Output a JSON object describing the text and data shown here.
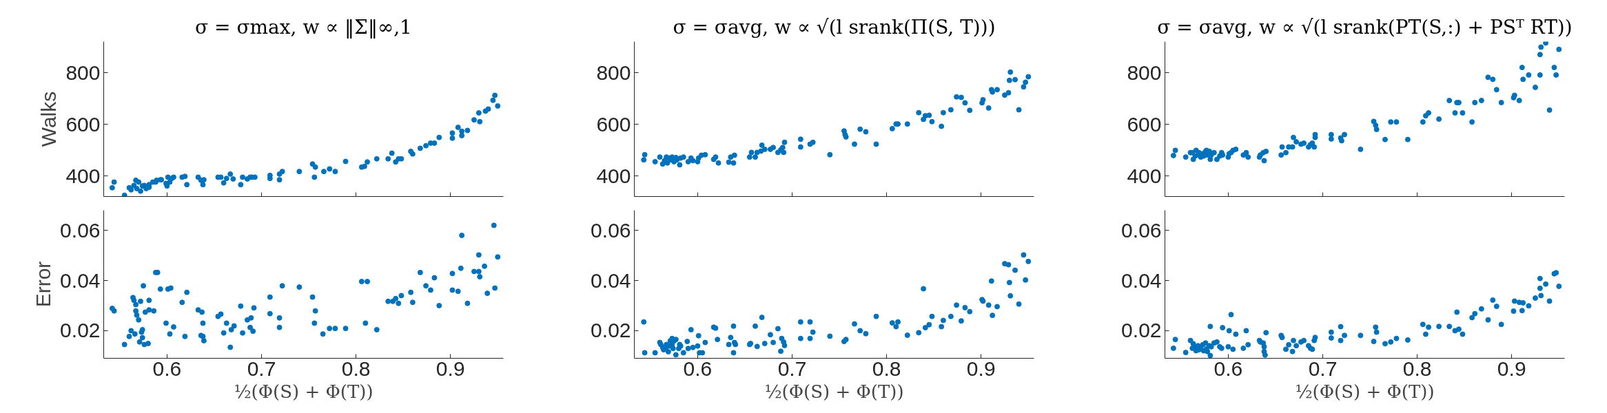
{
  "chart_data": [
    {
      "type": "scatter",
      "title": "σ = σmax, w ∝ ‖Σ‖∞,1",
      "ylabel": "Walks",
      "xlim": [
        0.533,
        0.956
      ],
      "ylim": [
        320,
        920
      ],
      "xticks": [
        0.6,
        0.7,
        0.8,
        0.9
      ],
      "yticks": [
        400,
        600,
        800
      ],
      "marker": "circle",
      "grid": false,
      "tick_labels": "y",
      "series": [
        {
          "color": "#0072bd",
          "x": [
            0.542,
            0.544,
            0.555,
            0.56,
            0.562,
            0.565,
            0.567,
            0.568,
            0.57,
            0.572,
            0.574,
            0.576,
            0.578,
            0.581,
            0.581,
            0.585,
            0.588,
            0.589,
            0.593,
            0.594,
            0.599,
            0.6,
            0.601,
            0.603,
            0.605,
            0.607,
            0.616,
            0.619,
            0.621,
            0.633,
            0.636,
            0.638,
            0.639,
            0.654,
            0.657,
            0.66,
            0.663,
            0.667,
            0.67,
            0.678,
            0.68,
            0.685,
            0.688,
            0.69,
            0.693,
            0.709,
            0.709,
            0.719,
            0.719,
            0.722,
            0.74,
            0.754,
            0.756,
            0.757,
            0.766,
            0.772,
            0.778,
            0.789,
            0.806,
            0.809,
            0.812,
            0.822,
            0.834,
            0.838,
            0.842,
            0.845,
            0.848,
            0.858,
            0.86,
            0.868,
            0.874,
            0.879,
            0.883,
            0.888,
            0.902,
            0.902,
            0.908,
            0.912,
            0.912,
            0.918,
            0.925,
            0.93,
            0.931,
            0.937,
            0.94,
            0.945,
            0.947,
            0.95
          ],
          "values": [
            354,
            376,
            325,
            354,
            346,
            363,
            383,
            351,
            376,
            341,
            361,
            363,
            351,
            366,
            356,
            376,
            376,
            383,
            385,
            385,
            371,
            361,
            395,
            376,
            390,
            395,
            395,
            398,
            366,
            395,
            383,
            366,
            385,
            395,
            395,
            373,
            390,
            407,
            388,
            366,
            395,
            388,
            395,
            395,
            395,
            402,
            390,
            385,
            407,
            417,
            417,
            446,
            395,
            434,
            417,
            427,
            417,
            456,
            434,
            437,
            454,
            466,
            466,
            488,
            454,
            466,
            466,
            495,
            485,
            507,
            517,
            527,
            527,
            549,
            546,
            566,
            588,
            573,
            556,
            576,
            617,
            644,
            610,
            651,
            659,
            693,
            712,
            671
          ]
        }
      ]
    },
    {
      "type": "scatter",
      "title": "σ = σavg, w ∝ √(l srank(Π(S, T)))",
      "xlim": [
        0.533,
        0.956
      ],
      "ylim": [
        320,
        920
      ],
      "xticks": [
        0.6,
        0.7,
        0.8,
        0.9
      ],
      "yticks": [
        400,
        600,
        800
      ],
      "marker": "circle",
      "grid": false,
      "tick_labels": "y",
      "series": [
        {
          "color": "#0072bd",
          "x": [
            0.543,
            0.544,
            0.555,
            0.56,
            0.563,
            0.565,
            0.567,
            0.568,
            0.57,
            0.572,
            0.573,
            0.575,
            0.577,
            0.578,
            0.581,
            0.582,
            0.585,
            0.59,
            0.593,
            0.595,
            0.6,
            0.601,
            0.604,
            0.608,
            0.617,
            0.619,
            0.622,
            0.633,
            0.635,
            0.638,
            0.639,
            0.655,
            0.657,
            0.661,
            0.663,
            0.667,
            0.668,
            0.671,
            0.677,
            0.68,
            0.685,
            0.688,
            0.69,
            0.691,
            0.692,
            0.709,
            0.709,
            0.719,
            0.722,
            0.74,
            0.755,
            0.756,
            0.757,
            0.766,
            0.772,
            0.778,
            0.789,
            0.806,
            0.81,
            0.812,
            0.822,
            0.834,
            0.839,
            0.841,
            0.845,
            0.848,
            0.858,
            0.86,
            0.868,
            0.874,
            0.879,
            0.883,
            0.888,
            0.901,
            0.902,
            0.908,
            0.911,
            0.912,
            0.917,
            0.925,
            0.929,
            0.93,
            0.931,
            0.936,
            0.94,
            0.945,
            0.947,
            0.95
          ],
          "values": [
            462,
            482,
            455,
            473,
            446,
            459,
            473,
            450,
            469,
            462,
            473,
            455,
            471,
            462,
            443,
            469,
            473,
            455,
            469,
            459,
            455,
            469,
            480,
            482,
            464,
            473,
            450,
            453,
            473,
            450,
            480,
            473,
            491,
            473,
            491,
            496,
            519,
            503,
            503,
            510,
            491,
            501,
            510,
            491,
            530,
            542,
            512,
            523,
            530,
            482,
            574,
            560,
            551,
            523,
            581,
            571,
            523,
            583,
            601,
            601,
            601,
            645,
            619,
            633,
            635,
            610,
            592,
            645,
            656,
            706,
            704,
            683,
            654,
            683,
            695,
            663,
            734,
            725,
            734,
            713,
            722,
            770,
            802,
            773,
            656,
            745,
            763,
            784
          ]
        }
      ]
    },
    {
      "type": "scatter",
      "title": "σ = σavg, w ∝ √(l srank(PT(S,:) + PSᵀ RT))",
      "xlim": [
        0.533,
        0.956
      ],
      "ylim": [
        320,
        920
      ],
      "xticks": [
        0.6,
        0.7,
        0.8,
        0.9
      ],
      "yticks": [
        400,
        600,
        800
      ],
      "marker": "circle",
      "grid": false,
      "tick_labels": "y",
      "series": [
        {
          "color": "#0072bd",
          "x": [
            0.542,
            0.544,
            0.555,
            0.56,
            0.562,
            0.563,
            0.565,
            0.566,
            0.568,
            0.569,
            0.571,
            0.573,
            0.574,
            0.576,
            0.577,
            0.578,
            0.58,
            0.581,
            0.582,
            0.585,
            0.588,
            0.591,
            0.593,
            0.594,
            0.6,
            0.601,
            0.603,
            0.605,
            0.608,
            0.616,
            0.619,
            0.621,
            0.633,
            0.634,
            0.637,
            0.638,
            0.64,
            0.656,
            0.657,
            0.661,
            0.664,
            0.668,
            0.669,
            0.672,
            0.677,
            0.68,
            0.685,
            0.687,
            0.689,
            0.691,
            0.692,
            0.692,
            0.709,
            0.709,
            0.719,
            0.72,
            0.723,
            0.74,
            0.754,
            0.756,
            0.757,
            0.766,
            0.772,
            0.778,
            0.79,
            0.806,
            0.809,
            0.812,
            0.823,
            0.834,
            0.84,
            0.842,
            0.844,
            0.848,
            0.858,
            0.861,
            0.868,
            0.875,
            0.88,
            0.884,
            0.889,
            0.902,
            0.903,
            0.908,
            0.911,
            0.912,
            0.918,
            0.925,
            0.93,
            0.93,
            0.931,
            0.936,
            0.94,
            0.945,
            0.947,
            0.95
          ],
          "values": [
            479,
            499,
            473,
            490,
            490,
            464,
            477,
            499,
            481,
            490,
            473,
            486,
            477,
            495,
            499,
            481,
            495,
            464,
            481,
            490,
            464,
            477,
            490,
            481,
            473,
            486,
            490,
            499,
            503,
            481,
            490,
            473,
            473,
            481,
            490,
            459,
            495,
            481,
            512,
            490,
            512,
            512,
            549,
            532,
            523,
            527,
            512,
            521,
            527,
            512,
            549,
            560,
            543,
            560,
            547,
            536,
            560,
            503,
            611,
            596,
            580,
            541,
            609,
            609,
            541,
            609,
            633,
            644,
            620,
            692,
            644,
            684,
            684,
            644,
            609,
            684,
            692,
            782,
            774,
            734,
            684,
            703,
            712,
            692,
            820,
            774,
            791,
            743,
            791,
            870,
            899,
            915,
            655,
            820,
            791,
            890
          ]
        }
      ]
    },
    {
      "type": "scatter",
      "ylabel": "Error",
      "xlabel": "½(Φ(S) + Φ(T))",
      "xlim": [
        0.533,
        0.956
      ],
      "ylim": [
        0.009,
        0.068
      ],
      "xticks": [
        0.6,
        0.7,
        0.8,
        0.9
      ],
      "yticks": [
        0.02,
        0.04,
        0.06
      ],
      "marker": "circle",
      "grid": false,
      "series": [
        {
          "color": "#0072bd",
          "x": [
            0.542,
            0.544,
            0.555,
            0.56,
            0.562,
            0.564,
            0.565,
            0.566,
            0.567,
            0.567,
            0.568,
            0.57,
            0.571,
            0.572,
            0.573,
            0.574,
            0.574,
            0.575,
            0.576,
            0.577,
            0.58,
            0.581,
            0.581,
            0.586,
            0.588,
            0.59,
            0.593,
            0.599,
            0.601,
            0.603,
            0.604,
            0.607,
            0.616,
            0.619,
            0.621,
            0.633,
            0.636,
            0.637,
            0.638,
            0.638,
            0.639,
            0.654,
            0.657,
            0.66,
            0.663,
            0.667,
            0.668,
            0.671,
            0.678,
            0.68,
            0.685,
            0.688,
            0.689,
            0.691,
            0.692,
            0.709,
            0.709,
            0.719,
            0.719,
            0.722,
            0.74,
            0.754,
            0.757,
            0.756,
            0.765,
            0.772,
            0.778,
            0.789,
            0.806,
            0.81,
            0.812,
            0.822,
            0.834,
            0.839,
            0.842,
            0.845,
            0.848,
            0.858,
            0.86,
            0.868,
            0.874,
            0.879,
            0.883,
            0.888,
            0.902,
            0.902,
            0.908,
            0.911,
            0.912,
            0.918,
            0.925,
            0.93,
            0.93,
            0.931,
            0.936,
            0.939,
            0.946,
            0.947,
            0.95
          ],
          "values": [
            0.0289,
            0.0279,
            0.0145,
            0.0177,
            0.02,
            0.0332,
            0.0321,
            0.0187,
            0.0304,
            0.0279,
            0.0262,
            0.0243,
            0.0155,
            0.0317,
            0.0194,
            0.0172,
            0.0204,
            0.0379,
            0.0145,
            0.0274,
            0.0149,
            0.0283,
            0.0321,
            0.0279,
            0.0432,
            0.0432,
            0.0366,
            0.023,
            0.0366,
            0.0187,
            0.037,
            0.0215,
            0.0313,
            0.0177,
            0.0353,
            0.0283,
            0.0181,
            0.0274,
            0.023,
            0.0177,
            0.016,
            0.0257,
            0.0266,
            0.0191,
            0.023,
            0.0134,
            0.0204,
            0.0219,
            0.0298,
            0.0191,
            0.0243,
            0.0213,
            0.0251,
            0.0198,
            0.0291,
            0.0334,
            0.0268,
            0.0251,
            0.0213,
            0.0379,
            0.0374,
            0.0334,
            0.0279,
            0.023,
            0.0187,
            0.0209,
            0.0209,
            0.0209,
            0.0396,
            0.023,
            0.0396,
            0.0204,
            0.0317,
            0.0317,
            0.0328,
            0.0309,
            0.034,
            0.0353,
            0.0313,
            0.0432,
            0.0379,
            0.0362,
            0.0411,
            0.03,
            0.0428,
            0.0362,
            0.0357,
            0.0449,
            0.058,
            0.0309,
            0.0436,
            0.0436,
            0.0502,
            0.0415,
            0.0457,
            0.0349,
            0.062,
            0.037,
            0.0494
          ]
        }
      ]
    },
    {
      "type": "scatter",
      "xlabel": "½(Φ(S) + Φ(T))",
      "xlim": [
        0.533,
        0.956
      ],
      "ylim": [
        0.009,
        0.068
      ],
      "xticks": [
        0.6,
        0.7,
        0.8,
        0.9
      ],
      "yticks": [
        0.02,
        0.04,
        0.06
      ],
      "marker": "circle",
      "grid": false,
      "series": [
        {
          "color": "#0072bd",
          "x": [
            0.543,
            0.544,
            0.555,
            0.56,
            0.561,
            0.563,
            0.564,
            0.566,
            0.567,
            0.569,
            0.57,
            0.571,
            0.573,
            0.573,
            0.574,
            0.575,
            0.577,
            0.577,
            0.58,
            0.581,
            0.582,
            0.585,
            0.589,
            0.59,
            0.593,
            0.595,
            0.6,
            0.601,
            0.602,
            0.605,
            0.608,
            0.617,
            0.619,
            0.621,
            0.633,
            0.635,
            0.638,
            0.638,
            0.639,
            0.64,
            0.655,
            0.656,
            0.661,
            0.663,
            0.668,
            0.671,
            0.677,
            0.68,
            0.685,
            0.688,
            0.689,
            0.691,
            0.692,
            0.709,
            0.709,
            0.719,
            0.719,
            0.722,
            0.74,
            0.755,
            0.757,
            0.766,
            0.772,
            0.778,
            0.789,
            0.806,
            0.81,
            0.812,
            0.822,
            0.834,
            0.839,
            0.841,
            0.845,
            0.848,
            0.858,
            0.86,
            0.868,
            0.874,
            0.879,
            0.883,
            0.888,
            0.901,
            0.902,
            0.908,
            0.911,
            0.912,
            0.917,
            0.925,
            0.929,
            0.93,
            0.931,
            0.936,
            0.94,
            0.945,
            0.947,
            0.95
          ],
          "values": [
            0.0235,
            0.0112,
            0.0112,
            0.0153,
            0.0145,
            0.0133,
            0.0124,
            0.0129,
            0.0145,
            0.0116,
            0.0139,
            0.0159,
            0.0169,
            0.0145,
            0.0129,
            0.0159,
            0.0165,
            0.0104,
            0.0129,
            0.0145,
            0.0139,
            0.0112,
            0.0157,
            0.0129,
            0.0204,
            0.0133,
            0.0139,
            0.018,
            0.0112,
            0.0112,
            0.0153,
            0.0214,
            0.021,
            0.0165,
            0.0145,
            0.0173,
            0.0218,
            0.0112,
            0.0153,
            0.0145,
            0.0145,
            0.0149,
            0.0218,
            0.0137,
            0.0253,
            0.0149,
            0.0184,
            0.0153,
            0.0208,
            0.0118,
            0.0169,
            0.0155,
            0.0141,
            0.0235,
            0.0169,
            0.0235,
            0.0169,
            0.0194,
            0.0178,
            0.0157,
            0.0165,
            0.0227,
            0.02,
            0.0188,
            0.0257,
            0.0231,
            0.0216,
            0.0235,
            0.0182,
            0.0192,
            0.0367,
            0.0212,
            0.0224,
            0.0257,
            0.0216,
            0.0241,
            0.0257,
            0.0302,
            0.0239,
            0.0292,
            0.0276,
            0.0324,
            0.0318,
            0.0302,
            0.0398,
            0.0261,
            0.0296,
            0.0467,
            0.0463,
            0.0392,
            0.0339,
            0.0441,
            0.0306,
            0.0502,
            0.0402,
            0.0476
          ]
        }
      ]
    },
    {
      "type": "scatter",
      "xlabel": "½(Φ(S) + Φ(T))",
      "xlim": [
        0.533,
        0.956
      ],
      "ylim": [
        0.009,
        0.068
      ],
      "xticks": [
        0.6,
        0.7,
        0.8,
        0.9
      ],
      "yticks": [
        0.02,
        0.04,
        0.06
      ],
      "marker": "circle",
      "grid": false,
      "series": [
        {
          "color": "#0072bd",
          "x": [
            0.542,
            0.544,
            0.555,
            0.56,
            0.562,
            0.563,
            0.565,
            0.566,
            0.568,
            0.569,
            0.571,
            0.573,
            0.574,
            0.576,
            0.577,
            0.578,
            0.58,
            0.581,
            0.581,
            0.582,
            0.585,
            0.588,
            0.591,
            0.593,
            0.594,
            0.6,
            0.601,
            0.603,
            0.605,
            0.608,
            0.616,
            0.619,
            0.621,
            0.633,
            0.634,
            0.637,
            0.638,
            0.638,
            0.639,
            0.64,
            0.656,
            0.657,
            0.661,
            0.664,
            0.668,
            0.669,
            0.672,
            0.677,
            0.68,
            0.685,
            0.687,
            0.689,
            0.691,
            0.692,
            0.709,
            0.709,
            0.719,
            0.719,
            0.723,
            0.74,
            0.754,
            0.756,
            0.757,
            0.766,
            0.772,
            0.778,
            0.79,
            0.806,
            0.809,
            0.812,
            0.823,
            0.834,
            0.84,
            0.842,
            0.844,
            0.848,
            0.858,
            0.861,
            0.868,
            0.875,
            0.88,
            0.884,
            0.889,
            0.902,
            0.903,
            0.908,
            0.911,
            0.912,
            0.918,
            0.925,
            0.93,
            0.93,
            0.931,
            0.936,
            0.94,
            0.945,
            0.947,
            0.95
          ],
          "values": [
            0.013,
            0.0165,
            0.0113,
            0.0161,
            0.013,
            0.0148,
            0.0136,
            0.012,
            0.014,
            0.0124,
            0.0136,
            0.0144,
            0.012,
            0.0151,
            0.0128,
            0.0117,
            0.014,
            0.0101,
            0.0217,
            0.0136,
            0.0151,
            0.0155,
            0.0136,
            0.013,
            0.0212,
            0.0136,
            0.02,
            0.0264,
            0.0126,
            0.0186,
            0.013,
            0.02,
            0.0144,
            0.0161,
            0.0155,
            0.0151,
            0.0136,
            0.0117,
            0.0103,
            0.0192,
            0.0181,
            0.0173,
            0.0126,
            0.0144,
            0.0117,
            0.0161,
            0.014,
            0.0155,
            0.0161,
            0.014,
            0.013,
            0.0126,
            0.0161,
            0.0173,
            0.0194,
            0.0171,
            0.0216,
            0.0161,
            0.0181,
            0.0181,
            0.0157,
            0.0214,
            0.0194,
            0.0148,
            0.0155,
            0.0169,
            0.0163,
            0.0225,
            0.0186,
            0.0214,
            0.0217,
            0.0217,
            0.02,
            0.0274,
            0.0206,
            0.0186,
            0.0252,
            0.0268,
            0.0287,
            0.0243,
            0.0322,
            0.0297,
            0.0225,
            0.0278,
            0.0318,
            0.0313,
            0.028,
            0.0311,
            0.0299,
            0.033,
            0.0408,
            0.0369,
            0.034,
            0.0386,
            0.0318,
            0.0427,
            0.0431,
            0.0377
          ]
        }
      ]
    }
  ]
}
